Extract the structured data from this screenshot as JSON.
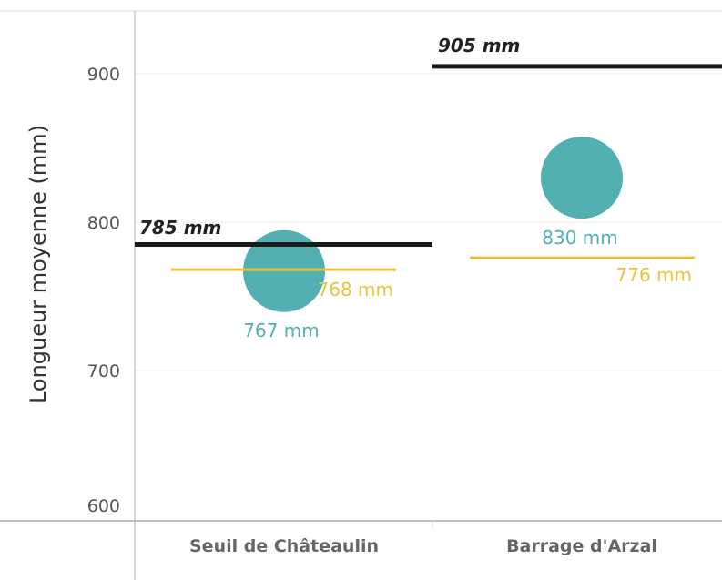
{
  "chart_data": {
    "type": "scatter",
    "ylabel": "Longueur moyenne (mm)",
    "ylim": [
      600,
      940
    ],
    "yticks": [
      600,
      700,
      800,
      900
    ],
    "categories": [
      "Seuil de Châteaulin",
      "Barrage d'Arzal"
    ],
    "series": [
      {
        "kind": "circle",
        "color": "#52b0b0",
        "values": [
          767,
          830
        ],
        "labels": [
          "767 mm",
          "830 mm"
        ]
      },
      {
        "kind": "line-yellow",
        "color": "#e9c43a",
        "values": [
          768,
          776
        ],
        "labels": [
          "768 mm",
          "776 mm"
        ]
      },
      {
        "kind": "line-black",
        "color": "#1a1a1a",
        "values": [
          785,
          905
        ],
        "labels": [
          "785 mm",
          "905 mm"
        ]
      }
    ],
    "grid": true,
    "legend": "none"
  }
}
